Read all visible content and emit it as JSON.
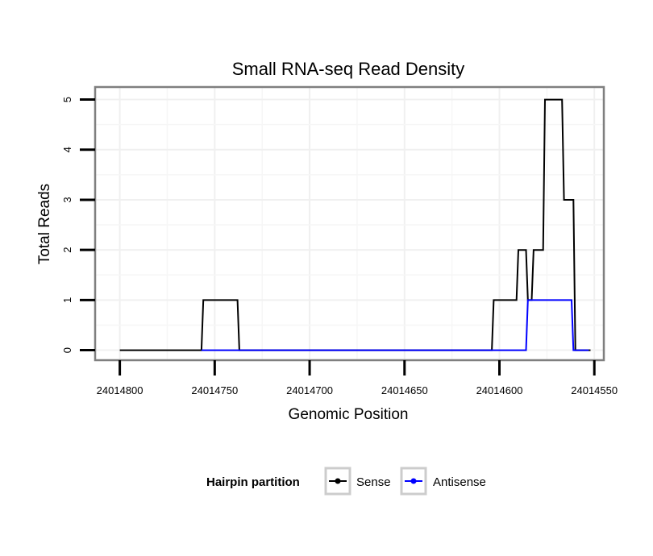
{
  "chart_data": {
    "type": "line",
    "title": "Small RNA-seq Read Density",
    "xlabel": "Genomic Position",
    "ylabel": "Total Reads",
    "x_reversed": true,
    "xlim": [
      24014813,
      24014545
    ],
    "ylim": [
      -0.2,
      5.25
    ],
    "xticks": [
      24014800,
      24014750,
      24014700,
      24014650,
      24014600,
      24014550
    ],
    "xtick_labels": [
      "24014800",
      "24014750",
      "24014700",
      "24014650",
      "24014600",
      "24014550"
    ],
    "yticks": [
      0,
      1,
      2,
      3,
      4,
      5
    ],
    "ytick_labels": [
      "0",
      "1",
      "2",
      "3",
      "4",
      "5"
    ],
    "grid": true,
    "legend": {
      "title": "Hairpin partition",
      "position": "bottom",
      "entries": [
        "Sense",
        "Antisense"
      ]
    },
    "series": [
      {
        "name": "Sense",
        "color": "#000000",
        "x": [
          24014800,
          24014757,
          24014756,
          24014738,
          24014737,
          24014604,
          24014603,
          24014591,
          24014590,
          24014586,
          24014585,
          24014583,
          24014582,
          24014577,
          24014576,
          24014567,
          24014566,
          24014561,
          24014560,
          24014553,
          24014552
        ],
        "y": [
          0,
          0,
          1,
          1,
          0,
          0,
          1,
          1,
          2,
          2,
          1,
          1,
          2,
          2,
          5,
          5,
          3,
          3,
          0,
          0,
          0
        ]
      },
      {
        "name": "Antisense",
        "color": "#0000ff",
        "x": [
          24014757,
          24014737,
          24014604,
          24014586,
          24014585,
          24014562,
          24014561,
          24014553
        ],
        "y": [
          0,
          0,
          0,
          0,
          1,
          1,
          0,
          0
        ]
      }
    ]
  }
}
